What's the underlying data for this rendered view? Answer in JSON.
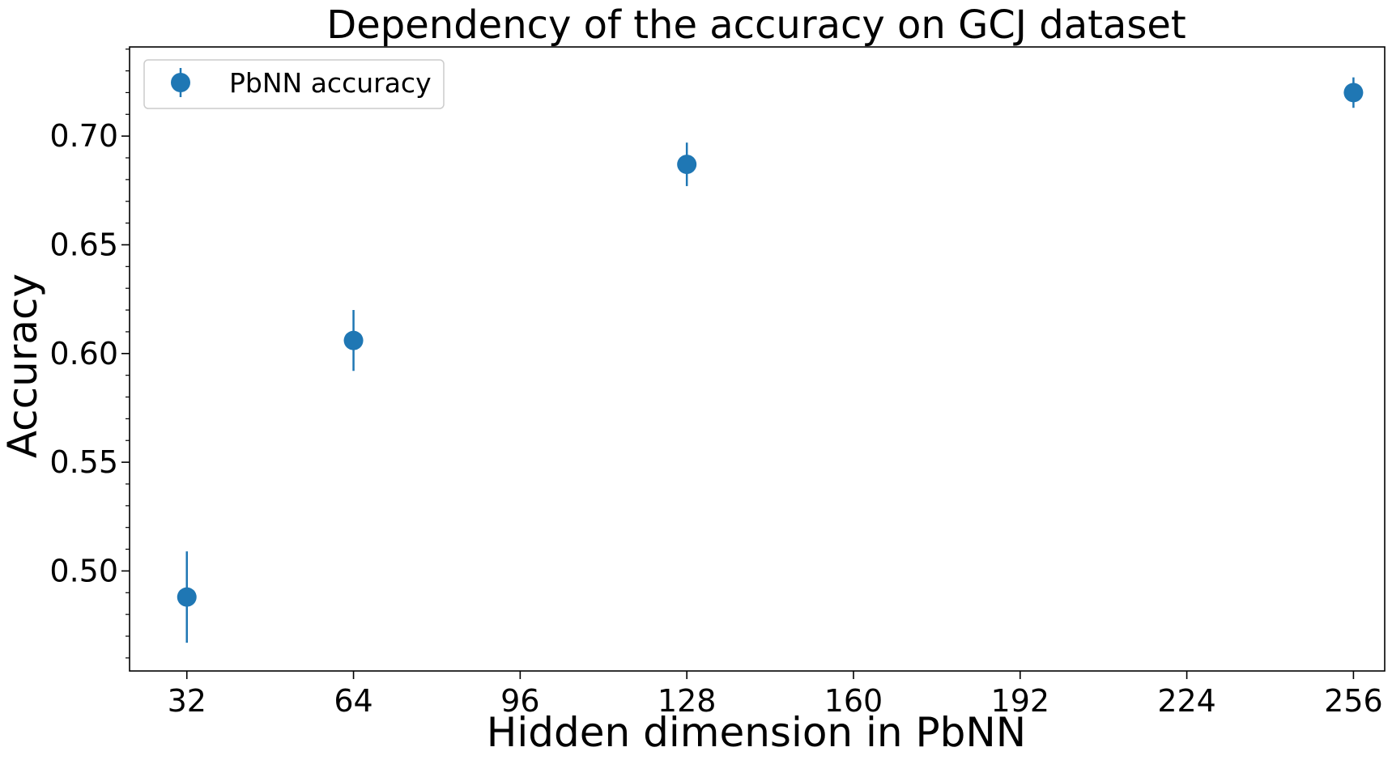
{
  "chart_data": {
    "type": "scatter",
    "title": "Dependency of the accuracy on GCJ dataset",
    "xlabel": "Hidden dimension in PbNN",
    "ylabel": "Accuracy",
    "xlim": [
      21,
      262
    ],
    "ylim": [
      0.454,
      0.741
    ],
    "x_ticks": [
      32,
      64,
      96,
      128,
      160,
      192,
      224,
      256
    ],
    "x_tick_labels": [
      "32",
      "64",
      "96",
      "128",
      "160",
      "192",
      "224",
      "256"
    ],
    "y_ticks": [
      0.5,
      0.55,
      0.6,
      0.65,
      0.7
    ],
    "y_tick_labels": [
      "0.50",
      "0.55",
      "0.60",
      "0.65",
      "0.70"
    ],
    "y_minor_step": 0.01,
    "grid": false,
    "legend_placement": "top-left",
    "series": [
      {
        "name": "PbNN accuracy",
        "color": "#1f77b4",
        "marker": "circle",
        "points": [
          {
            "x": 32,
            "y": 0.488,
            "err": 0.021
          },
          {
            "x": 64,
            "y": 0.606,
            "err": 0.014
          },
          {
            "x": 128,
            "y": 0.687,
            "err": 0.01
          },
          {
            "x": 256,
            "y": 0.72,
            "err": 0.007
          }
        ]
      }
    ]
  }
}
